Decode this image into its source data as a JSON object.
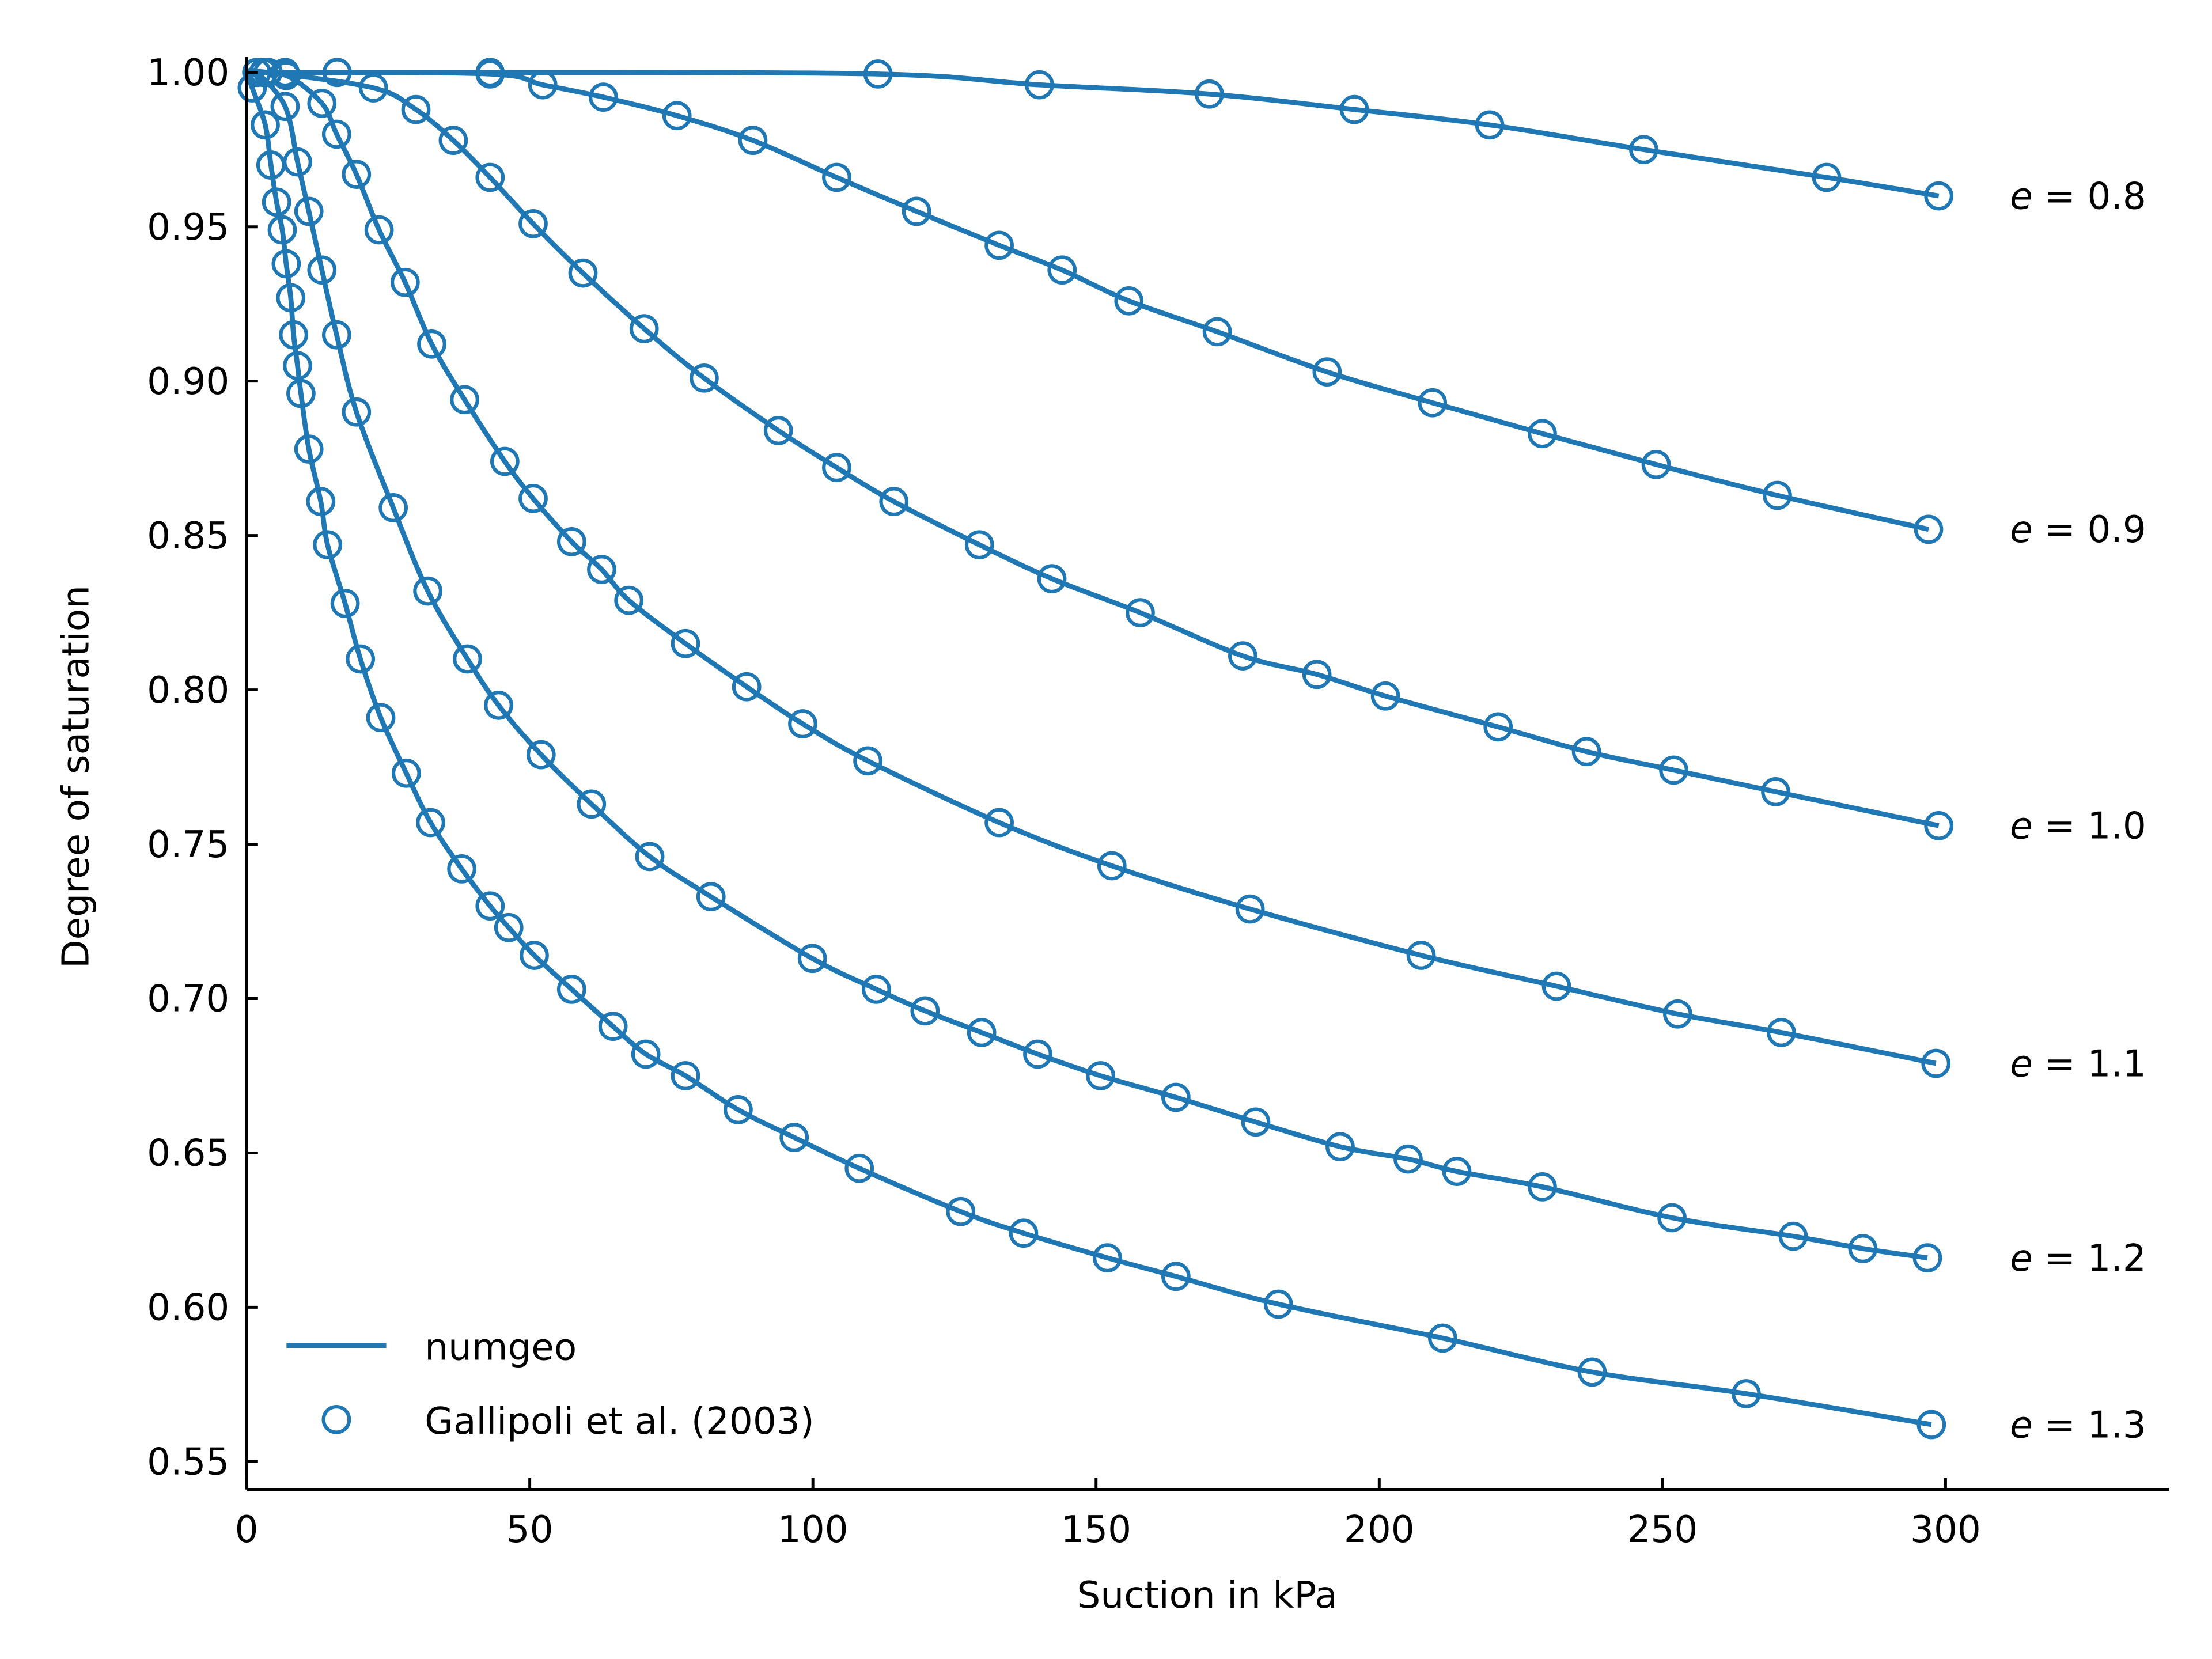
{
  "chart_data": {
    "type": "line",
    "xlabel": "Suction in kPa",
    "ylabel": "Degree of saturation",
    "xlim": [
      0,
      339.5
    ],
    "ylim": [
      0.541,
      1.005
    ],
    "xticks": [
      0,
      50,
      100,
      150,
      200,
      250,
      300
    ],
    "xtick_labels": [
      "0",
      "50",
      "100",
      "150",
      "200",
      "250",
      "300"
    ],
    "yticks": [
      0.55,
      0.6,
      0.65,
      0.7,
      0.75,
      0.8,
      0.85,
      0.9,
      0.95,
      1.0
    ],
    "ytick_labels": [
      "0.55",
      "0.60",
      "0.65",
      "0.70",
      "0.75",
      "0.80",
      "0.85",
      "0.90",
      "0.95",
      "1.00"
    ],
    "grid": false,
    "legend_position": "bottom-left",
    "legend": [
      {
        "label": "numgeo",
        "style": "line"
      },
      {
        "label": "Gallipoli et al. (2003)",
        "style": "marker"
      }
    ],
    "color": "#1f77b4",
    "series": [
      {
        "label_var": "e",
        "label_eq": "=",
        "label_value": "0.8",
        "points": [
          [
            3,
            1.0
          ],
          [
            16,
            1.0
          ],
          [
            43,
            1.0
          ],
          [
            111.5,
            0.9995
          ],
          [
            140,
            0.996
          ],
          [
            170,
            0.993
          ],
          [
            195.6,
            0.988
          ],
          [
            219.5,
            0.983
          ],
          [
            246.7,
            0.975
          ],
          [
            279,
            0.966
          ],
          [
            298.8,
            0.96
          ]
        ]
      },
      {
        "label_var": "e",
        "label_eq": "=",
        "label_value": "0.9",
        "points": [
          [
            6.8,
            1.0
          ],
          [
            43,
            0.9995
          ],
          [
            52.3,
            0.996
          ],
          [
            63,
            0.992
          ],
          [
            76,
            0.986
          ],
          [
            89.4,
            0.978
          ],
          [
            104.2,
            0.966
          ],
          [
            118.3,
            0.955
          ],
          [
            132.9,
            0.944
          ],
          [
            144,
            0.936
          ],
          [
            155.8,
            0.926
          ],
          [
            171.4,
            0.916
          ],
          [
            190.8,
            0.903
          ],
          [
            209.4,
            0.893
          ],
          [
            228.8,
            0.883
          ],
          [
            248.9,
            0.873
          ],
          [
            270.3,
            0.863
          ],
          [
            297,
            0.852
          ]
        ]
      },
      {
        "label_var": "e",
        "label_eq": "=",
        "label_value": "1.0",
        "points": [
          [
            3.8,
            1.0
          ],
          [
            22.4,
            0.995
          ],
          [
            29.9,
            0.988
          ],
          [
            36.5,
            0.978
          ],
          [
            43,
            0.966
          ],
          [
            50.6,
            0.951
          ],
          [
            59.4,
            0.935
          ],
          [
            70.2,
            0.917
          ],
          [
            80.8,
            0.901
          ],
          [
            93.9,
            0.884
          ],
          [
            104.2,
            0.872
          ],
          [
            114.3,
            0.861
          ],
          [
            129.4,
            0.847
          ],
          [
            142.2,
            0.836
          ],
          [
            157.8,
            0.825
          ],
          [
            175.9,
            0.811
          ],
          [
            189,
            0.805
          ],
          [
            201.1,
            0.798
          ],
          [
            221,
            0.788
          ],
          [
            236.6,
            0.78
          ],
          [
            252,
            0.774
          ],
          [
            270,
            0.767
          ],
          [
            298.8,
            0.756
          ]
        ]
      },
      {
        "label_var": "e",
        "label_eq": "=",
        "label_value": "1.1",
        "points": [
          [
            7,
            0.999
          ],
          [
            13.3,
            0.99
          ],
          [
            15.9,
            0.98
          ],
          [
            19.4,
            0.967
          ],
          [
            23.4,
            0.949
          ],
          [
            28,
            0.932
          ],
          [
            32.7,
            0.912
          ],
          [
            38.5,
            0.894
          ],
          [
            45.6,
            0.874
          ],
          [
            50.6,
            0.862
          ],
          [
            57.4,
            0.848
          ],
          [
            62.7,
            0.839
          ],
          [
            67.5,
            0.829
          ],
          [
            77.5,
            0.815
          ],
          [
            88.3,
            0.801
          ],
          [
            98.2,
            0.789
          ],
          [
            109.7,
            0.777
          ],
          [
            132.9,
            0.757
          ],
          [
            152.8,
            0.743
          ],
          [
            177.2,
            0.729
          ],
          [
            207.4,
            0.714
          ],
          [
            231.3,
            0.704
          ],
          [
            252.7,
            0.695
          ],
          [
            271,
            0.689
          ],
          [
            298.3,
            0.679
          ]
        ]
      },
      {
        "label_var": "e",
        "label_eq": "=",
        "label_value": "1.2",
        "points": [
          [
            1.8,
            1.0
          ],
          [
            6.8,
            0.989
          ],
          [
            9,
            0.971
          ],
          [
            11,
            0.955
          ],
          [
            13.3,
            0.936
          ],
          [
            15.9,
            0.915
          ],
          [
            19.4,
            0.89
          ],
          [
            25.9,
            0.859
          ],
          [
            32,
            0.832
          ],
          [
            39,
            0.81
          ],
          [
            44.5,
            0.795
          ],
          [
            52,
            0.779
          ],
          [
            60.9,
            0.763
          ],
          [
            71.2,
            0.746
          ],
          [
            82,
            0.733
          ],
          [
            99.9,
            0.713
          ],
          [
            111.2,
            0.703
          ],
          [
            119.8,
            0.696
          ],
          [
            129.8,
            0.689
          ],
          [
            139.7,
            0.682
          ],
          [
            150.8,
            0.675
          ],
          [
            164.1,
            0.668
          ],
          [
            178.2,
            0.66
          ],
          [
            193.1,
            0.652
          ],
          [
            205.1,
            0.648
          ],
          [
            213.7,
            0.644
          ],
          [
            228.8,
            0.639
          ],
          [
            251.7,
            0.629
          ],
          [
            273.1,
            0.623
          ],
          [
            285.4,
            0.619
          ],
          [
            296.8,
            0.616
          ]
        ]
      },
      {
        "label_var": "e",
        "label_eq": "=",
        "label_value": "1.3",
        "points": [
          [
            1,
            0.995
          ],
          [
            3.3,
            0.983
          ],
          [
            4.3,
            0.97
          ],
          [
            5.3,
            0.958
          ],
          [
            6.3,
            0.949
          ],
          [
            7,
            0.938
          ],
          [
            7.8,
            0.927
          ],
          [
            8.3,
            0.915
          ],
          [
            9,
            0.905
          ],
          [
            9.6,
            0.896
          ],
          [
            11,
            0.878
          ],
          [
            13.1,
            0.861
          ],
          [
            14.3,
            0.847
          ],
          [
            17.4,
            0.828
          ],
          [
            20.1,
            0.81
          ],
          [
            23.7,
            0.791
          ],
          [
            28.2,
            0.773
          ],
          [
            32.5,
            0.757
          ],
          [
            38,
            0.742
          ],
          [
            43,
            0.73
          ],
          [
            46.3,
            0.723
          ],
          [
            50.8,
            0.714
          ],
          [
            57.4,
            0.703
          ],
          [
            64.7,
            0.691
          ],
          [
            70.5,
            0.682
          ],
          [
            77.5,
            0.675
          ],
          [
            86.8,
            0.664
          ],
          [
            96.7,
            0.655
          ],
          [
            108.2,
            0.645
          ],
          [
            126.1,
            0.631
          ],
          [
            137.2,
            0.624
          ],
          [
            152,
            0.616
          ],
          [
            164.1,
            0.61
          ],
          [
            182.2,
            0.601
          ],
          [
            211.2,
            0.59
          ],
          [
            237.6,
            0.579
          ],
          [
            264.8,
            0.572
          ],
          [
            297.5,
            0.562
          ]
        ]
      }
    ]
  }
}
